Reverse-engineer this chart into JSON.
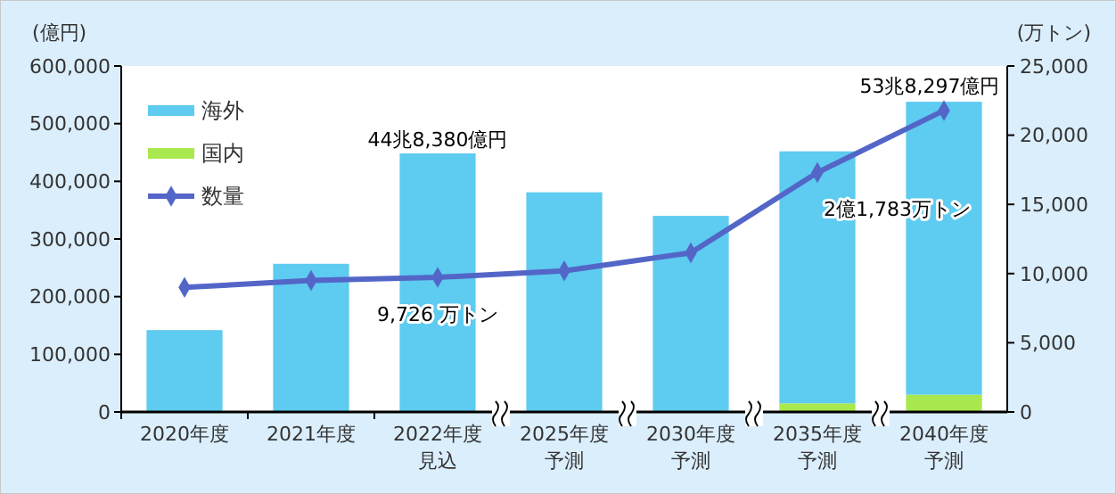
{
  "chart_data": {
    "type": "bar",
    "stacked": true,
    "categories": [
      "2020年度",
      "2021年度",
      "2022年度見込",
      "2025年度予測",
      "2030年度予測",
      "2035年度予測",
      "2040年度予測"
    ],
    "series": [
      {
        "name": "国内",
        "color": "#a9e84e",
        "values": [
          1000,
          1000,
          0,
          1000,
          1000,
          15000,
          30000
        ]
      },
      {
        "name": "海外",
        "color": "#5ecbf0",
        "values": [
          141000,
          256000,
          448380,
          380000,
          339000,
          437000,
          508000
        ]
      },
      {
        "name": "数量",
        "type": "line",
        "axis": "y2",
        "color": "#5366c8",
        "marker": "diamond",
        "values": [
          9000,
          9500,
          9726,
          10200,
          11500,
          17300,
          21783
        ]
      }
    ],
    "ylabel": "(億円)",
    "y2label": "(万トン)",
    "ylim": [
      0,
      600000
    ],
    "yticks": [
      {
        "value": 0,
        "label": "0"
      },
      {
        "value": 100000,
        "label": "100,000"
      },
      {
        "value": 200000,
        "label": "200,000"
      },
      {
        "value": 300000,
        "label": "300,000"
      },
      {
        "value": 400000,
        "label": "400,000"
      },
      {
        "value": 500000,
        "label": "500,000"
      },
      {
        "value": 600000,
        "label": "600,000"
      }
    ],
    "y2lim": [
      0,
      25000
    ],
    "y2ticks": [
      {
        "value": 0,
        "label": "0"
      },
      {
        "value": 5000,
        "label": "5,000"
      },
      {
        "value": 10000,
        "label": "10,000"
      },
      {
        "value": 15000,
        "label": "15,000"
      },
      {
        "value": 20000,
        "label": "20,000"
      },
      {
        "value": 25000,
        "label": "25,000"
      }
    ],
    "annotations": [
      "44兆8,380億円",
      "53兆8,297億円",
      "9,726 万トン",
      "2億1,783万トン"
    ],
    "legend": "top left",
    "grid": false
  }
}
